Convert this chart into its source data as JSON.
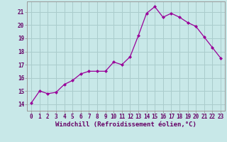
{
  "x": [
    0,
    1,
    2,
    3,
    4,
    5,
    6,
    7,
    8,
    9,
    10,
    11,
    12,
    13,
    14,
    15,
    16,
    17,
    18,
    19,
    20,
    21,
    22,
    23
  ],
  "y": [
    14.1,
    15.0,
    14.8,
    14.9,
    15.5,
    15.8,
    16.3,
    16.5,
    16.5,
    16.5,
    17.2,
    17.0,
    17.6,
    19.2,
    20.9,
    21.4,
    20.6,
    20.9,
    20.6,
    20.2,
    19.9,
    19.1,
    18.3,
    17.5
  ],
  "line_color": "#990099",
  "marker": "D",
  "marker_size": 2.0,
  "bg_color": "#c8e8e8",
  "grid_color": "#aacccc",
  "spine_color": "#999999",
  "xlabel": "Windchill (Refroidissement éolien,°C)",
  "xlim": [
    -0.5,
    23.5
  ],
  "ylim": [
    13.5,
    21.8
  ],
  "yticks": [
    14,
    15,
    16,
    17,
    18,
    19,
    20,
    21
  ],
  "xticks": [
    0,
    1,
    2,
    3,
    4,
    5,
    6,
    7,
    8,
    9,
    10,
    11,
    12,
    13,
    14,
    15,
    16,
    17,
    18,
    19,
    20,
    21,
    22,
    23
  ],
  "tick_color": "#660066",
  "label_color": "#660066",
  "tick_fontsize": 5.5,
  "xlabel_fontsize": 6.5
}
